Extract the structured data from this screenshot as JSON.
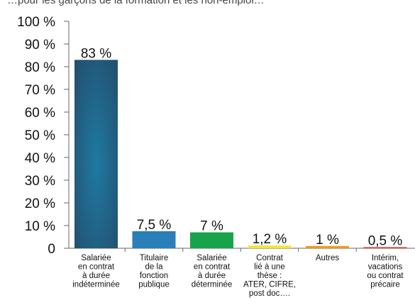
{
  "header_note": "…pour les garçons de la formation et les non-emploi…",
  "chart_data": {
    "type": "bar",
    "categories": [
      [
        "Salariée",
        "en contrat",
        "à durée",
        "indéterminée"
      ],
      [
        "Titulaire",
        "de la",
        "fonction",
        "publique"
      ],
      [
        "Salariée",
        "en contrat",
        "à durée",
        "déterminée"
      ],
      [
        "Contrat",
        "lié à une",
        "thèse :",
        "ATER, CIFRE,",
        "post doc…."
      ],
      [
        "Autres"
      ],
      [
        "Intérim,",
        "vacations",
        "ou contrat",
        "précaire"
      ]
    ],
    "values": [
      83,
      7.5,
      7,
      1.2,
      1,
      0.5
    ],
    "value_labels": [
      "83 %",
      "7,5 %",
      "7 %",
      "1,2 %",
      "1 %",
      "0,5 %"
    ],
    "colors": [
      "#2a5f80",
      "#2a7fb8",
      "#18a34a",
      "#f2e530",
      "#ef9a1c",
      "#e53a2e"
    ],
    "yticks": [
      "0",
      "10 %",
      "20 %",
      "30 %",
      "40 %",
      "50 %",
      "60 %",
      "70 %",
      "80 %",
      "90 %",
      "100 %"
    ],
    "ylim": [
      0,
      100
    ],
    "title": "",
    "xlabel": "",
    "ylabel": "",
    "grid": false,
    "legend": "none"
  }
}
